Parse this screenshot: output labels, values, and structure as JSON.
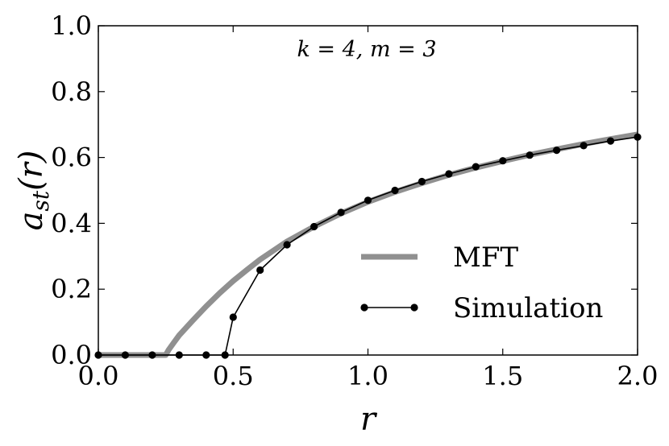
{
  "chart_data": {
    "type": "line",
    "xlabel": "r",
    "ylabel": "a_st(r)",
    "annotation": "k = 4, m = 3",
    "xlim": [
      0.0,
      2.0
    ],
    "ylim": [
      0.0,
      1.0
    ],
    "xticks": [
      "0.0",
      "0.5",
      "1.0",
      "1.5",
      "2.0"
    ],
    "yticks": [
      "0.0",
      "0.2",
      "0.4",
      "0.6",
      "0.8",
      "1.0"
    ],
    "grid": false,
    "legend_position": "bottom-right",
    "series": [
      {
        "name": "MFT",
        "style": "thick-line",
        "color": "#909090",
        "x": [
          0.0,
          0.25,
          0.26,
          0.28,
          0.3,
          0.35,
          0.4,
          0.45,
          0.5,
          0.55,
          0.6,
          0.7,
          0.8,
          0.9,
          1.0,
          1.1,
          1.2,
          1.3,
          1.4,
          1.5,
          1.6,
          1.7,
          1.8,
          1.9,
          2.0
        ],
        "y": [
          0.0,
          0.0,
          0.015,
          0.038,
          0.06,
          0.105,
          0.148,
          0.188,
          0.225,
          0.258,
          0.29,
          0.345,
          0.39,
          0.43,
          0.465,
          0.495,
          0.522,
          0.547,
          0.569,
          0.589,
          0.608,
          0.625,
          0.641,
          0.656,
          0.67
        ]
      },
      {
        "name": "Simulation",
        "style": "line-with-markers",
        "color": "#000000",
        "x": [
          0.0,
          0.1,
          0.2,
          0.3,
          0.4,
          0.47,
          0.5,
          0.6,
          0.7,
          0.8,
          0.9,
          1.0,
          1.1,
          1.2,
          1.3,
          1.4,
          1.5,
          1.6,
          1.7,
          1.8,
          1.9,
          2.0
        ],
        "y": [
          0.0,
          0.0,
          0.0,
          0.0,
          0.0,
          0.0,
          0.115,
          0.258,
          0.335,
          0.39,
          0.433,
          0.47,
          0.5,
          0.527,
          0.55,
          0.572,
          0.59,
          0.607,
          0.622,
          0.636,
          0.65,
          0.662
        ]
      }
    ]
  }
}
